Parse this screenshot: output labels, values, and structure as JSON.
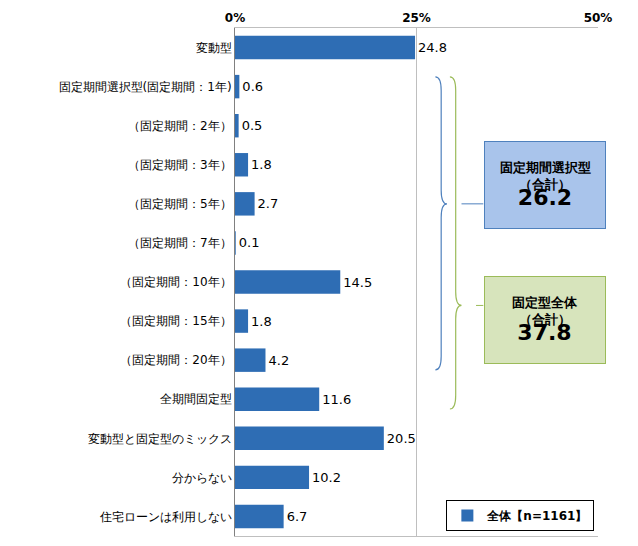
{
  "chart_data": {
    "type": "bar",
    "orientation": "horizontal",
    "categories": [
      "変動型",
      "固定期間選択型(固定期間：1年)",
      "（固定期間：2年）",
      "（固定期間：3年）",
      "（固定期間：5年）",
      "（固定期間：7年）",
      "（固定期間：10年）",
      "（固定期間：15年）",
      "（固定期間：20年）",
      "全期間固定型",
      "変動型と固定型のミックス",
      "分からない",
      "住宅ローンは利用しない"
    ],
    "series": [
      {
        "name": "全体【n=1161】",
        "color": "#2e6db4",
        "values": [
          24.8,
          0.6,
          0.5,
          1.8,
          2.7,
          0.1,
          14.5,
          1.8,
          4.2,
          11.6,
          20.5,
          10.2,
          6.7
        ]
      }
    ],
    "xlim": [
      0,
      50
    ],
    "xticks": [
      {
        "value": 0,
        "label": "0%"
      },
      {
        "value": 25,
        "label": "25%"
      },
      {
        "value": 50,
        "label": "50%"
      }
    ],
    "grid": true,
    "legend": "lower right",
    "data_labels": true,
    "annotations": [
      {
        "text": [
          "固定期間選択型",
          "（合計）"
        ],
        "value": 26.2
      },
      {
        "text": [
          "固定型全体",
          "（合計）"
        ],
        "value": 37.8
      }
    ]
  }
}
